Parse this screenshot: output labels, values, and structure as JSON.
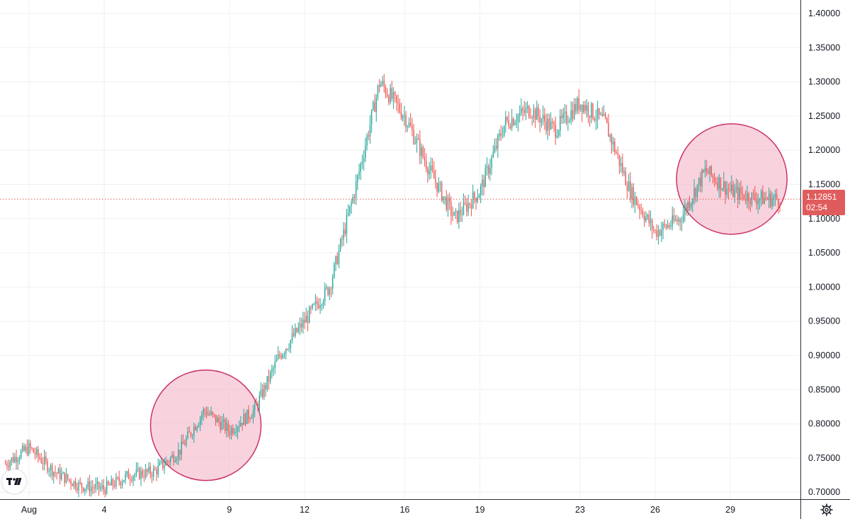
{
  "chart_data": {
    "type": "candlestick",
    "title": "",
    "xlabel": "",
    "ylabel": "",
    "ylim": [
      0.69,
      1.41
    ],
    "x_tick_labels": [
      "Aug",
      "4",
      "9",
      "12",
      "16",
      "19",
      "23",
      "26",
      "29"
    ],
    "y_tick_labels": [
      "0.70000",
      "0.75000",
      "0.80000",
      "0.85000",
      "0.90000",
      "0.95000",
      "1.00000",
      "1.05000",
      "1.10000",
      "1.15000",
      "1.20000",
      "1.25000",
      "1.30000",
      "1.35000",
      "1.40000"
    ],
    "y_ticks": [
      0.7,
      0.75,
      0.8,
      0.85,
      0.9,
      0.95,
      1.0,
      1.05,
      1.1,
      1.15,
      1.2,
      1.25,
      1.3,
      1.35,
      1.4
    ],
    "grid": true,
    "approx_close_path": [
      [
        "Jul 31",
        0.74
      ],
      [
        "Aug 1",
        0.765
      ],
      [
        "Aug 2",
        0.73
      ],
      [
        "Aug 3",
        0.71
      ],
      [
        "Aug 4",
        0.705
      ],
      [
        "Aug 5",
        0.725
      ],
      [
        "Aug 6",
        0.73
      ],
      [
        "Aug 7",
        0.76
      ],
      [
        "Aug 8",
        0.82
      ],
      [
        "Aug 9",
        0.79
      ],
      [
        "Aug 10",
        0.82
      ],
      [
        "Aug 11",
        0.9
      ],
      [
        "Aug 12",
        0.95
      ],
      [
        "Aug 13",
        1.0
      ],
      [
        "Aug 14",
        1.14
      ],
      [
        "Aug 15",
        1.3
      ],
      [
        "Aug 16",
        1.25
      ],
      [
        "Aug 17",
        1.17
      ],
      [
        "Aug 18",
        1.1
      ],
      [
        "Aug 19",
        1.14
      ],
      [
        "Aug 20",
        1.24
      ],
      [
        "Aug 21",
        1.26
      ],
      [
        "Aug 22",
        1.23
      ],
      [
        "Aug 23",
        1.27
      ],
      [
        "Aug 24",
        1.24
      ],
      [
        "Aug 25",
        1.14
      ],
      [
        "Aug 26",
        1.08
      ],
      [
        "Aug 27",
        1.1
      ],
      [
        "Aug 28",
        1.17
      ],
      [
        "Aug 29",
        1.14
      ],
      [
        "Aug 30",
        1.13
      ],
      [
        "Aug 31",
        1.1285
      ]
    ],
    "current_price": 1.12851,
    "current_price_label": "1.12851",
    "countdown_label": "02:54",
    "highlight_circles": [
      {
        "center_date": "Aug 8",
        "center_price": 0.8
      },
      {
        "center_date": "Aug 29",
        "center_price": 1.16
      }
    ],
    "up_color": "#26a69a",
    "down_color": "#ef5350",
    "highlight_fill": "#f4b6c8",
    "highlight_stroke": "#cc3366",
    "current_price_color": "#e05c5c"
  },
  "logo": {
    "icon": "tradingview-logo-icon",
    "text": "TV"
  },
  "settings": {
    "icon": "gear-icon"
  }
}
